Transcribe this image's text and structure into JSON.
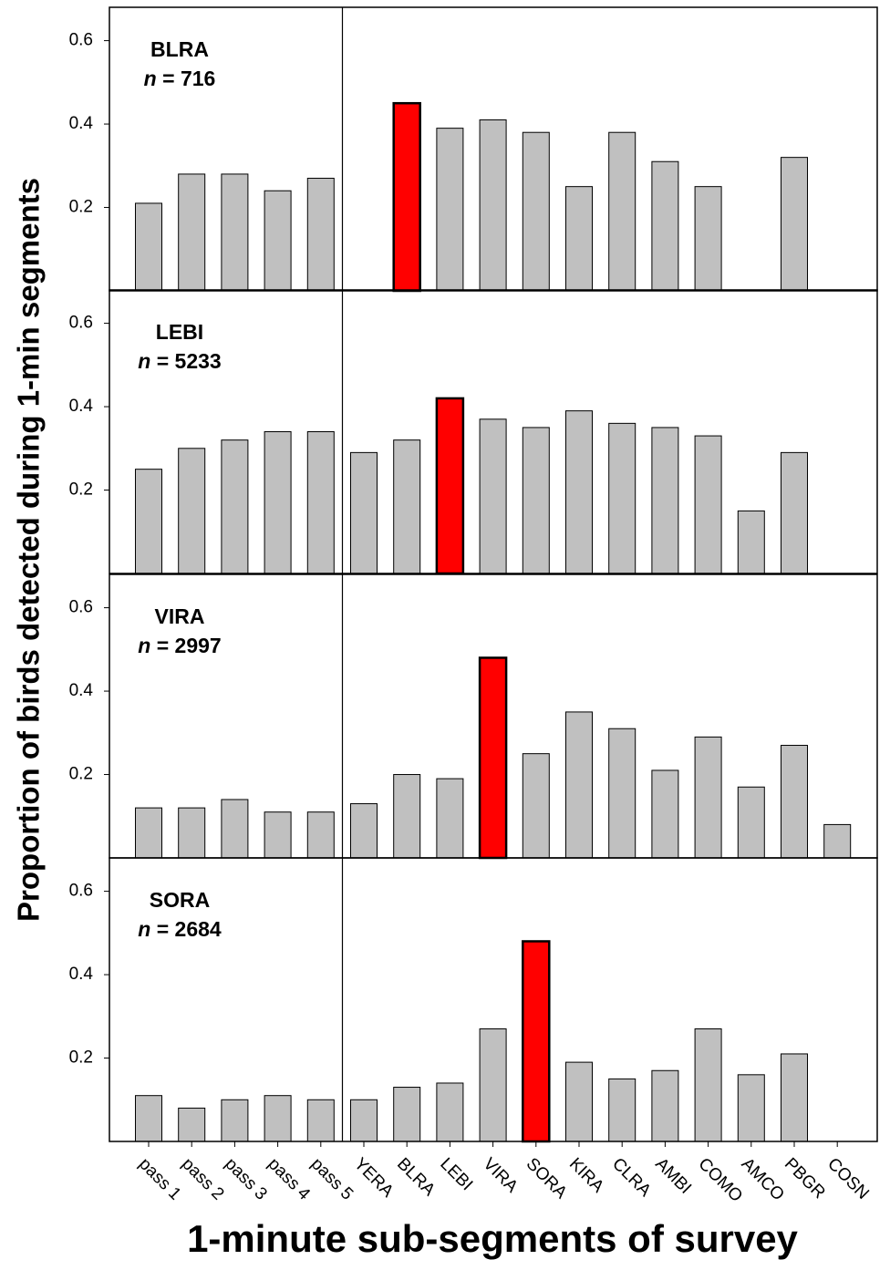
{
  "chart_data": {
    "type": "bar",
    "y_label": "Proportion of birds detected during 1-min segments",
    "x_label": "1-minute sub-segments of survey",
    "categories": [
      "pass 1",
      "pass 2",
      "pass 3",
      "pass 4",
      "pass 5",
      "YERA",
      "BLRA",
      "LEBI",
      "VIRA",
      "SORA",
      "KIRA",
      "CLRA",
      "AMBI",
      "COMO",
      "AMCO",
      "PBGR",
      "COSN"
    ],
    "ylim": [
      0,
      0.68
    ],
    "yticks": [
      0.2,
      0.4,
      0.6
    ],
    "color": "#c0c0c0",
    "highlight_color": "#ff0000",
    "panels": [
      {
        "label": "BLRA",
        "annotation": "n = 716",
        "highlight": 6,
        "values": [
          0.21,
          0.28,
          0.28,
          0.24,
          0.27,
          null,
          0.45,
          0.39,
          0.41,
          0.38,
          0.25,
          0.38,
          0.31,
          0.25,
          null,
          0.32,
          null
        ]
      },
      {
        "label": "LEBI",
        "annotation": "n = 5233",
        "highlight": 7,
        "values": [
          0.25,
          0.3,
          0.32,
          0.34,
          0.34,
          0.29,
          0.32,
          0.42,
          0.37,
          0.35,
          0.39,
          0.36,
          0.35,
          0.33,
          0.15,
          0.29,
          null
        ]
      },
      {
        "label": "VIRA",
        "annotation": "n = 2997",
        "highlight": 8,
        "values": [
          0.12,
          0.12,
          0.14,
          0.11,
          0.11,
          0.13,
          0.2,
          0.19,
          0.48,
          0.25,
          0.35,
          0.31,
          0.21,
          0.29,
          0.17,
          0.27,
          0.08
        ]
      },
      {
        "label": "SORA",
        "annotation": "n = 2684",
        "highlight": 9,
        "values": [
          0.11,
          0.08,
          0.1,
          0.11,
          0.1,
          0.1,
          0.13,
          0.14,
          0.27,
          0.48,
          0.19,
          0.15,
          0.17,
          0.27,
          0.16,
          0.21,
          null
        ]
      }
    ]
  }
}
